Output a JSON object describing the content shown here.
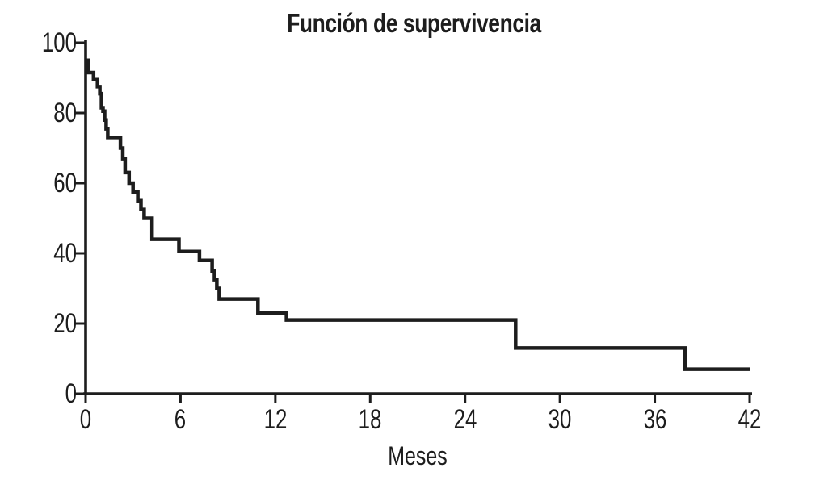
{
  "page": {
    "background": "#ffffff",
    "ink_color": "#1d1d1d"
  },
  "chart_data": {
    "type": "line",
    "subtype": "kaplan-meier-step",
    "title": "Función de supervivencia",
    "xlabel": "Meses",
    "ylabel": "",
    "xlim": [
      0,
      42
    ],
    "ylim": [
      0,
      100
    ],
    "x_ticks": [
      0,
      6,
      12,
      18,
      24,
      30,
      36,
      42
    ],
    "y_ticks": [
      0,
      20,
      40,
      60,
      80,
      100
    ],
    "grid": false,
    "legend": false,
    "series": [
      {
        "name": "Función de supervivencia",
        "color": "#1d1d1d",
        "step_points": [
          [
            0,
            95
          ],
          [
            0.15,
            91.5
          ],
          [
            0.5,
            89.5
          ],
          [
            0.75,
            87.5
          ],
          [
            0.9,
            85.5
          ],
          [
            1.0,
            81.5
          ],
          [
            1.1,
            80.5
          ],
          [
            1.2,
            78
          ],
          [
            1.3,
            75.5
          ],
          [
            1.4,
            73
          ],
          [
            2.2,
            70
          ],
          [
            2.35,
            67
          ],
          [
            2.5,
            63
          ],
          [
            2.75,
            60
          ],
          [
            3.0,
            57.5
          ],
          [
            3.3,
            55
          ],
          [
            3.5,
            52.5
          ],
          [
            3.7,
            50
          ],
          [
            4.2,
            44
          ],
          [
            5.9,
            40.5
          ],
          [
            7.2,
            38
          ],
          [
            8.0,
            35
          ],
          [
            8.15,
            32.5
          ],
          [
            8.3,
            30
          ],
          [
            8.45,
            27
          ],
          [
            10.9,
            23
          ],
          [
            12.7,
            21
          ],
          [
            27.2,
            13
          ],
          [
            37.9,
            7
          ]
        ],
        "end_x": 42
      }
    ]
  }
}
